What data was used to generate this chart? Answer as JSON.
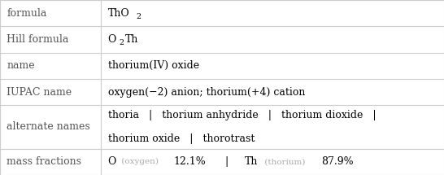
{
  "rows": [
    {
      "label": "formula",
      "raw": "formula_tho2"
    },
    {
      "label": "Hill formula",
      "raw": "hill_o2th"
    },
    {
      "label": "name",
      "raw": "name_plain",
      "value": "thorium(IV) oxide"
    },
    {
      "label": "IUPAC name",
      "raw": "iupac_plain",
      "value": "oxygen(−2) anion; thorium(+4) cation"
    },
    {
      "label": "alternate names",
      "raw": "alt_names"
    },
    {
      "label": "mass fractions",
      "raw": "mass_fractions"
    }
  ],
  "col_split": 0.228,
  "bg_color": "#ffffff",
  "label_color": "#555555",
  "value_color": "#000000",
  "line_color": "#cccccc",
  "font_size": 9.0,
  "subscript_size": 6.8,
  "small_text_color": "#aaaaaa",
  "row_heights": [
    1.0,
    1.0,
    1.0,
    1.0,
    1.65,
    1.0
  ],
  "alt_line1": "thoria   |   thorium anhydride   |   thorium dioxide   |",
  "alt_line2": "thorium oxide   |   thorotrast",
  "mass_parts": [
    {
      "text": "O",
      "color": "#000000",
      "size": 9.0,
      "weight": "normal"
    },
    {
      "text": " (oxygen) ",
      "color": "#aaaaaa",
      "size": 7.5,
      "weight": "normal"
    },
    {
      "text": "12.1%",
      "color": "#000000",
      "size": 9.0,
      "weight": "normal"
    },
    {
      "text": "   |   ",
      "color": "#000000",
      "size": 9.0,
      "weight": "normal"
    },
    {
      "text": "Th",
      "color": "#000000",
      "size": 9.0,
      "weight": "normal"
    },
    {
      "text": " (thorium) ",
      "color": "#aaaaaa",
      "size": 7.5,
      "weight": "normal"
    },
    {
      "text": "87.9%",
      "color": "#000000",
      "size": 9.0,
      "weight": "normal"
    }
  ]
}
